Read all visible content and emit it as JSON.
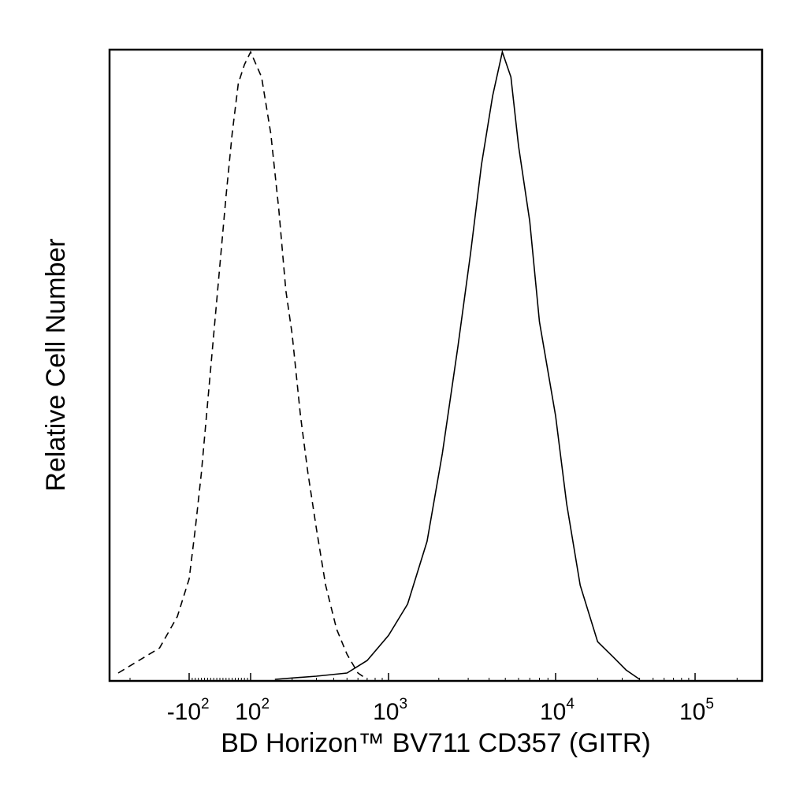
{
  "chart_data": {
    "type": "line",
    "title": "",
    "xlabel": "BD Horizon™ BV711 CD357 (GITR)",
    "ylabel": "Relative Cell Number",
    "x_scale": "biexponential",
    "xlim": [
      -300,
      250000
    ],
    "ylim": [
      0,
      100
    ],
    "grid": false,
    "legend": "none",
    "x_tick_labels": [
      {
        "value": -100,
        "base": "-10",
        "exp": "2"
      },
      {
        "value": 100,
        "base": "10",
        "exp": "2"
      },
      {
        "value": 1000,
        "base": "10",
        "exp": "3"
      },
      {
        "value": 10000,
        "base": "10",
        "exp": "4"
      },
      {
        "value": 100000,
        "base": "10",
        "exp": "5"
      }
    ],
    "series": [
      {
        "style": "dashed",
        "color": "#000000",
        "x": [
          -220,
          -150,
          -120,
          -100,
          -80,
          -60,
          -40,
          -20,
          0,
          20,
          40,
          60,
          80,
          100,
          120,
          140,
          160,
          180,
          200,
          230,
          260,
          300,
          350,
          420,
          500,
          600,
          700
        ],
        "y": [
          1,
          5,
          10,
          16,
          24,
          33,
          44,
          55,
          66,
          77,
          87,
          95,
          98,
          100,
          96,
          87,
          75,
          62,
          55,
          42,
          33,
          24,
          15,
          8,
          4,
          1,
          0
        ]
      },
      {
        "style": "solid",
        "color": "#000000",
        "x": [
          150,
          300,
          500,
          700,
          1000,
          1300,
          1700,
          2100,
          2600,
          3100,
          3600,
          4200,
          4800,
          5400,
          6000,
          7000,
          8000,
          10000,
          12000,
          15000,
          20000,
          26000,
          32000,
          40000
        ],
        "y": [
          0,
          0.5,
          1,
          3,
          7,
          12,
          22,
          36,
          53,
          68,
          82,
          93,
          100,
          96,
          85,
          73,
          57,
          42,
          28,
          15,
          6,
          3.5,
          1.5,
          0
        ]
      }
    ]
  }
}
